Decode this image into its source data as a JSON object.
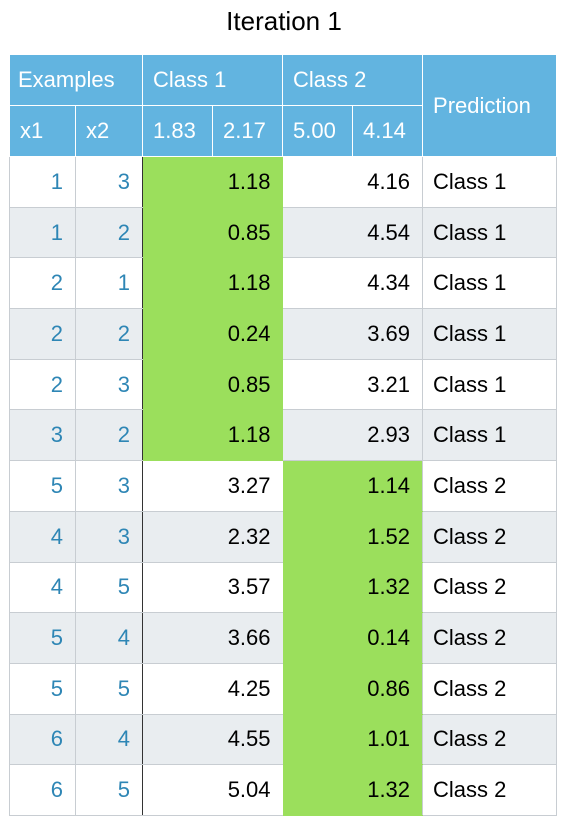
{
  "title": "Iteration 1",
  "header": {
    "examples": "Examples",
    "class1": "Class 1",
    "class2": "Class 2",
    "prediction": "Prediction",
    "x1": "x1",
    "x2": "x2",
    "c1a": "1.83",
    "c1b": "2.17",
    "c2a": "5.00",
    "c2b": "4.14"
  },
  "highlight_color": "#9bdf5c",
  "header_color": "#62b4e0",
  "rows": [
    {
      "x1": "1",
      "x2": "3",
      "d1": "1.18",
      "d2": "4.16",
      "pred": "Class 1"
    },
    {
      "x1": "1",
      "x2": "2",
      "d1": "0.85",
      "d2": "4.54",
      "pred": "Class 1"
    },
    {
      "x1": "2",
      "x2": "1",
      "d1": "1.18",
      "d2": "4.34",
      "pred": "Class 1"
    },
    {
      "x1": "2",
      "x2": "2",
      "d1": "0.24",
      "d2": "3.69",
      "pred": "Class 1"
    },
    {
      "x1": "2",
      "x2": "3",
      "d1": "0.85",
      "d2": "3.21",
      "pred": "Class 1"
    },
    {
      "x1": "3",
      "x2": "2",
      "d1": "1.18",
      "d2": "2.93",
      "pred": "Class 1"
    },
    {
      "x1": "5",
      "x2": "3",
      "d1": "3.27",
      "d2": "1.14",
      "pred": "Class 2"
    },
    {
      "x1": "4",
      "x2": "3",
      "d1": "2.32",
      "d2": "1.52",
      "pred": "Class 2"
    },
    {
      "x1": "4",
      "x2": "5",
      "d1": "3.57",
      "d2": "1.32",
      "pred": "Class 2"
    },
    {
      "x1": "5",
      "x2": "4",
      "d1": "3.66",
      "d2": "0.14",
      "pred": "Class 2"
    },
    {
      "x1": "5",
      "x2": "5",
      "d1": "4.25",
      "d2": "0.86",
      "pred": "Class 2"
    },
    {
      "x1": "6",
      "x2": "4",
      "d1": "4.55",
      "d2": "1.01",
      "pred": "Class 2"
    },
    {
      "x1": "6",
      "x2": "5",
      "d1": "5.04",
      "d2": "1.32",
      "pred": "Class 2"
    }
  ]
}
